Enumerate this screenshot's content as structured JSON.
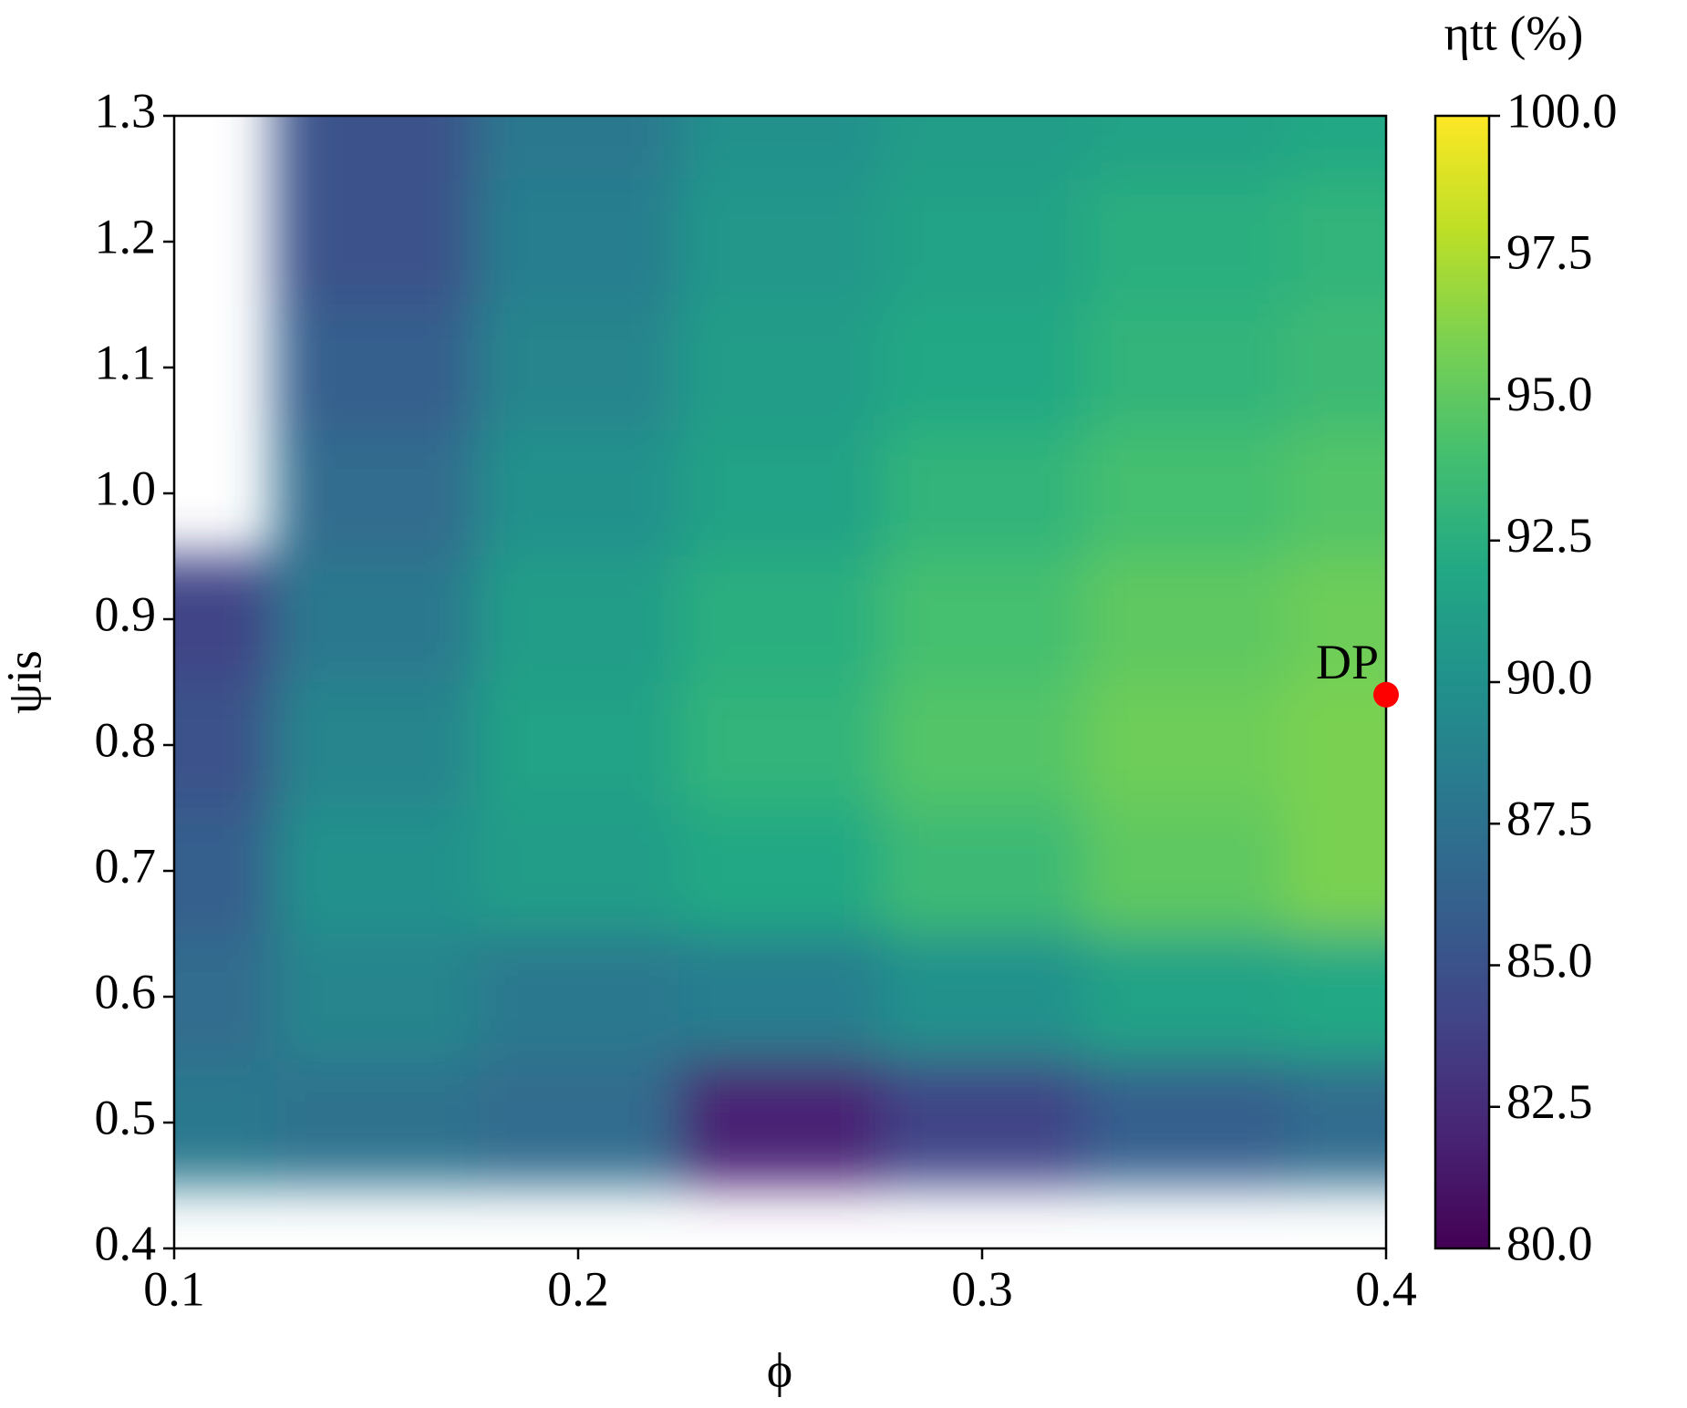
{
  "chart_data": {
    "type": "contour",
    "x_label": "ϕ",
    "y_label": "ψis",
    "colorbar_label": "ηtt (%)",
    "colormap": "viridis",
    "clim": [
      80,
      100
    ],
    "x": [
      0.1,
      0.15,
      0.2,
      0.25,
      0.3,
      0.35,
      0.4
    ],
    "y": [
      0.5,
      0.6,
      0.7,
      0.8,
      0.9,
      1.0,
      1.1,
      1.2,
      1.3
    ],
    "z": [
      [
        88,
        87.5,
        87,
        82,
        84,
        86,
        87
      ],
      [
        87,
        89,
        88,
        88.5,
        90,
        91.5,
        92
      ],
      [
        86,
        90,
        91,
        92,
        93.5,
        95,
        96
      ],
      [
        85,
        89,
        91.5,
        93,
        94.5,
        95.5,
        96
      ],
      [
        84,
        88,
        91,
        92.5,
        94,
        95,
        95.5
      ],
      [
        null,
        87,
        90,
        91.5,
        93,
        94,
        94.5
      ],
      [
        null,
        86,
        89,
        91,
        92,
        93,
        93.5
      ],
      [
        null,
        85,
        88.5,
        90.5,
        91.5,
        92.5,
        93
      ],
      [
        null,
        85,
        88,
        90,
        91,
        91.5,
        92
      ]
    ],
    "xlim": [
      0.1,
      0.4
    ],
    "ylim": [
      0.4,
      1.3
    ],
    "xticks": [
      0.1,
      0.2,
      0.3,
      0.4
    ],
    "yticks": [
      0.4,
      0.5,
      0.6,
      0.7,
      0.8,
      0.9,
      {
        "value": 1,
        "label": "1.0"
      },
      1.1,
      1.2,
      1.3
    ],
    "cticks": [
      {
        "value": 80,
        "label": "80.0"
      },
      82.5,
      {
        "value": 85,
        "label": "85.0"
      },
      87.5,
      {
        "value": 90,
        "label": "90.0"
      },
      92.5,
      {
        "value": 95,
        "label": "95.0"
      },
      97.5,
      {
        "value": 100,
        "label": "100.0"
      }
    ],
    "annotation": {
      "text": "DP",
      "x": 0.4,
      "y": 0.84,
      "color": "#ff0000"
    }
  }
}
